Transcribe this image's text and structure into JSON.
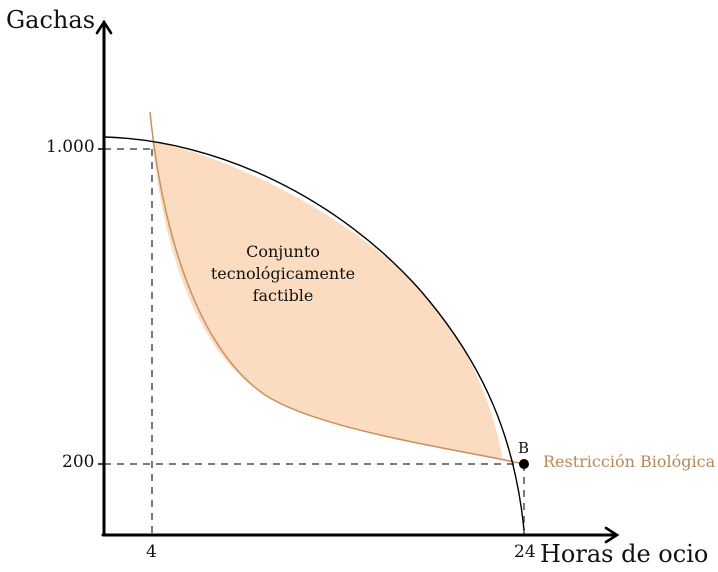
{
  "diagram": {
    "y_axis_title": "Gachas",
    "x_axis_title": "Horas de ocio",
    "y_ticks": [
      "1.000",
      "200"
    ],
    "x_ticks": [
      "4",
      "24"
    ],
    "region_label": [
      "Conjunto",
      "tecnológicamente",
      "factible"
    ],
    "biological_constraint_label": "Restricción Biológica",
    "point_label": "B",
    "colors": {
      "region_fill": "#fbdcc1",
      "biological_curve": "#c8915f",
      "biological_label": "#b9875a",
      "frontier_curve": "#000000",
      "guide_lines": "#7a7a7a",
      "axes": "#000000"
    }
  }
}
